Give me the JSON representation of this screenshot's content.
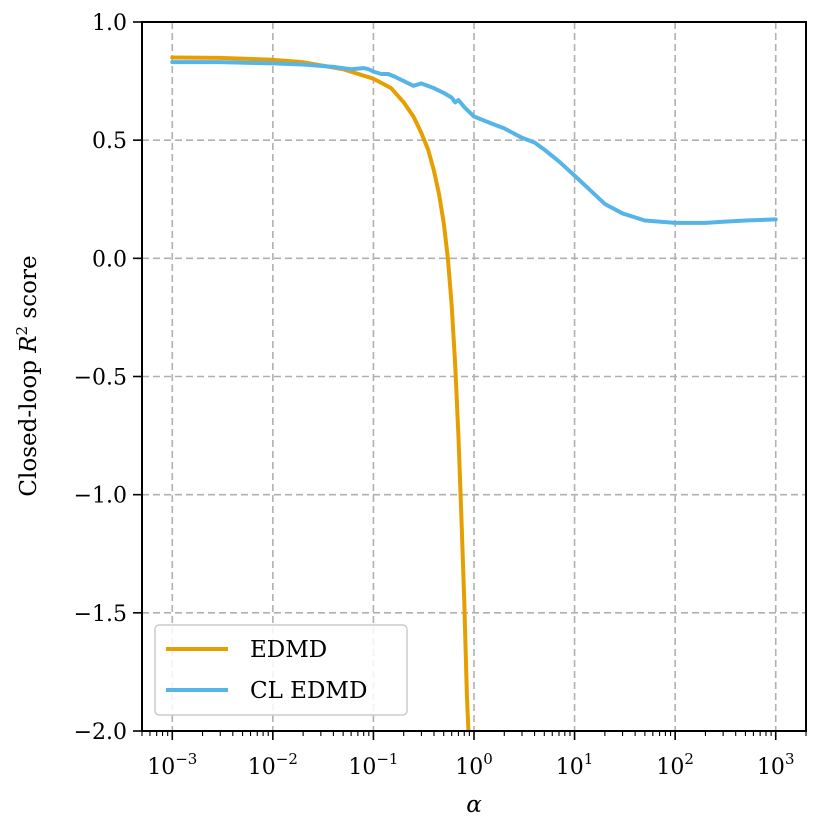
{
  "chart_data": {
    "type": "line",
    "title": "",
    "xlabel": "α",
    "ylabel": "Closed-loop R² score",
    "ylabel_parts": {
      "pre": "Closed-loop ",
      "var": "R",
      "sup": "2",
      "post": " score"
    },
    "xscale": "log",
    "xlim": [
      0.0005,
      2000
    ],
    "ylim": [
      -2.0,
      1.0
    ],
    "grid": true,
    "legend_position": "lower-left",
    "xticks": [
      {
        "value": 0.001,
        "base": "10",
        "exp": "−3"
      },
      {
        "value": 0.01,
        "base": "10",
        "exp": "−2"
      },
      {
        "value": 0.1,
        "base": "10",
        "exp": "−1"
      },
      {
        "value": 1,
        "base": "10",
        "exp": "0"
      },
      {
        "value": 10,
        "base": "10",
        "exp": "1"
      },
      {
        "value": 100,
        "base": "10",
        "exp": "2"
      },
      {
        "value": 1000,
        "base": "10",
        "exp": "3"
      }
    ],
    "yticks": [
      {
        "value": 1.0,
        "label": "1.0"
      },
      {
        "value": 0.5,
        "label": "0.5"
      },
      {
        "value": 0.0,
        "label": "0.0"
      },
      {
        "value": -0.5,
        "label": "−0.5"
      },
      {
        "value": -1.0,
        "label": "−1.0"
      },
      {
        "value": -1.5,
        "label": "−1.5"
      },
      {
        "value": -2.0,
        "label": "−2.0"
      }
    ],
    "series": [
      {
        "name": "EDMD",
        "color": "#E69F00",
        "x": [
          0.001,
          0.003,
          0.01,
          0.02,
          0.05,
          0.1,
          0.15,
          0.2,
          0.25,
          0.3,
          0.35,
          0.4,
          0.45,
          0.5,
          0.55,
          0.6,
          0.65,
          0.7,
          0.75,
          0.8,
          0.85,
          0.88
        ],
        "y": [
          0.85,
          0.848,
          0.84,
          0.83,
          0.8,
          0.76,
          0.72,
          0.66,
          0.6,
          0.53,
          0.46,
          0.37,
          0.27,
          0.15,
          0.0,
          -0.2,
          -0.45,
          -0.75,
          -1.1,
          -1.45,
          -1.85,
          -2.0
        ]
      },
      {
        "name": "CL EDMD",
        "color": "#56B4E9",
        "x": [
          0.001,
          0.003,
          0.01,
          0.02,
          0.04,
          0.06,
          0.08,
          0.09,
          0.1,
          0.12,
          0.14,
          0.16,
          0.2,
          0.25,
          0.3,
          0.4,
          0.5,
          0.6,
          0.65,
          0.7,
          0.8,
          1.0,
          1.5,
          2,
          3,
          4,
          5,
          7,
          10,
          15,
          20,
          30,
          50,
          100,
          150,
          200,
          300,
          500,
          1000
        ],
        "y": [
          0.83,
          0.83,
          0.825,
          0.82,
          0.81,
          0.8,
          0.805,
          0.8,
          0.79,
          0.78,
          0.78,
          0.77,
          0.75,
          0.73,
          0.74,
          0.72,
          0.7,
          0.68,
          0.66,
          0.67,
          0.64,
          0.6,
          0.57,
          0.55,
          0.51,
          0.49,
          0.46,
          0.41,
          0.35,
          0.28,
          0.23,
          0.19,
          0.16,
          0.15,
          0.15,
          0.15,
          0.155,
          0.16,
          0.165
        ]
      }
    ]
  }
}
